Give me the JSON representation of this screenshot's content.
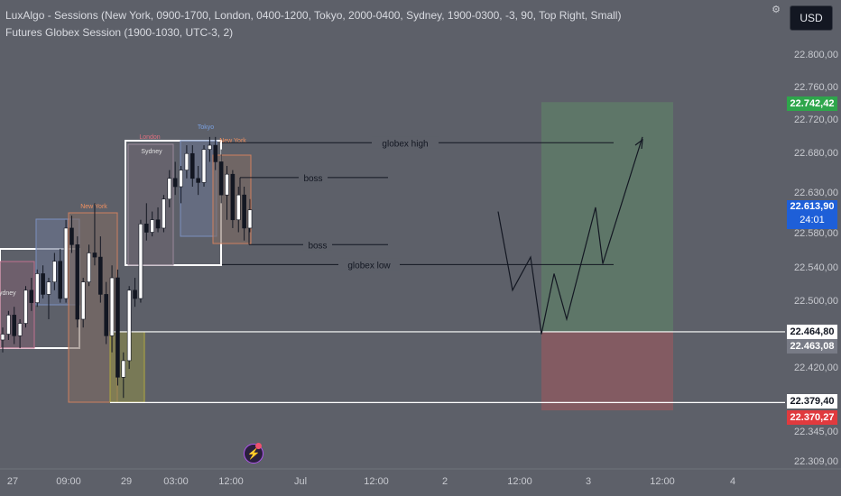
{
  "header": {
    "line1": "LuxAlgo - Sessions (New York, 0900-1700, London, 0400-1200, Tokyo, 2000-0400, Sydney, 1900-0300, -3, 90, Top Right, Small)",
    "line2": "Futures Globex Session (1900-1030, UTC-3, 2)"
  },
  "toolbar": {
    "currency_label": "USD",
    "gear_icon": "gear-icon"
  },
  "price_tags": [
    {
      "value": "22.742,42",
      "color": "#2ea64b"
    },
    {
      "value": "22.613,90",
      "color": "#1e5fd8",
      "sub": "24:01"
    },
    {
      "value": "22.464,80",
      "color": "#ffffff",
      "text_color": "#131722"
    },
    {
      "value": "22.463,08",
      "color": "#787b86"
    },
    {
      "value": "22.379,40",
      "color": "#ffffff",
      "text_color": "#131722"
    },
    {
      "value": "22.370,27",
      "color": "#e03a3e"
    }
  ],
  "bolt_icon": "lightning-icon",
  "chart_data": {
    "type": "candlestick",
    "y_ticks": [
      "22.800,00",
      "22.760,00",
      "22.720,00",
      "22.680,00",
      "22.630,00",
      "22.580,00",
      "22.540,00",
      "22.500,00",
      "22.420,00",
      "22.345,00",
      "22.309,00"
    ],
    "x_ticks": [
      "27",
      "09:00",
      "29",
      "03:00",
      "12:00",
      "Jul",
      "12:00",
      "2",
      "12:00",
      "3",
      "12:00",
      "4"
    ],
    "ylim": [
      22300,
      22830
    ],
    "annotations": [
      {
        "label": "globex high",
        "price": 22693
      },
      {
        "label": "boss",
        "price": 22651
      },
      {
        "label": "boss",
        "price": 22570
      },
      {
        "label": "globex low",
        "price": 22546
      }
    ],
    "session_labels": [
      "Sydney",
      "New York",
      "Sydney",
      "London",
      "Tokyo",
      "New York"
    ],
    "horizontal_levels": [
      22464.8,
      22379.4
    ],
    "candles": [
      [
        22455,
        22470,
        22440,
        22462
      ],
      [
        22462,
        22490,
        22455,
        22485
      ],
      [
        22485,
        22495,
        22450,
        22460
      ],
      [
        22460,
        22480,
        22445,
        22475
      ],
      [
        22475,
        22520,
        22470,
        22515
      ],
      [
        22515,
        22530,
        22490,
        22500
      ],
      [
        22500,
        22540,
        22495,
        22535
      ],
      [
        22535,
        22545,
        22505,
        22510
      ],
      [
        22510,
        22530,
        22480,
        22525
      ],
      [
        22525,
        22560,
        22515,
        22550
      ],
      [
        22550,
        22565,
        22500,
        22505
      ],
      [
        22505,
        22600,
        22500,
        22590
      ],
      [
        22590,
        22605,
        22560,
        22570
      ],
      [
        22570,
        22580,
        22470,
        22480
      ],
      [
        22480,
        22530,
        22470,
        22525
      ],
      [
        22525,
        22570,
        22520,
        22560
      ],
      [
        22560,
        22620,
        22545,
        22555
      ],
      [
        22555,
        22580,
        22500,
        22510
      ],
      [
        22510,
        22525,
        22450,
        22460
      ],
      [
        22460,
        22545,
        22440,
        22530
      ],
      [
        22530,
        22540,
        22400,
        22410
      ],
      [
        22410,
        22440,
        22385,
        22430
      ],
      [
        22430,
        22520,
        22420,
        22515
      ],
      [
        22515,
        22530,
        22495,
        22505
      ],
      [
        22505,
        22600,
        22500,
        22595
      ],
      [
        22595,
        22620,
        22575,
        22585
      ],
      [
        22585,
        22610,
        22580,
        22600
      ],
      [
        22600,
        22615,
        22585,
        22590
      ],
      [
        22590,
        22630,
        22585,
        22625
      ],
      [
        22625,
        22660,
        22615,
        22650
      ],
      [
        22650,
        22670,
        22630,
        22640
      ],
      [
        22640,
        22665,
        22620,
        22660
      ],
      [
        22660,
        22690,
        22650,
        22680
      ],
      [
        22680,
        22690,
        22640,
        22650
      ],
      [
        22650,
        22665,
        22630,
        22645
      ],
      [
        22645,
        22690,
        22640,
        22685
      ],
      [
        22685,
        22700,
        22670,
        22690
      ],
      [
        22690,
        22700,
        22660,
        22670
      ],
      [
        22670,
        22685,
        22620,
        22630
      ],
      [
        22630,
        22665,
        22600,
        22655
      ],
      [
        22655,
        22660,
        22590,
        22600
      ],
      [
        22600,
        22640,
        22585,
        22630
      ],
      [
        22630,
        22640,
        22575,
        22590
      ],
      [
        22590,
        22625,
        22585,
        22612
      ]
    ],
    "projection": [
      [
        22610,
        0
      ],
      [
        22515,
        0
      ],
      [
        22555,
        0
      ],
      [
        22462,
        0
      ],
      [
        22535,
        0
      ],
      [
        22480,
        0
      ],
      [
        22615,
        0
      ],
      [
        22547,
        0
      ],
      [
        22700,
        0
      ]
    ],
    "zones": {
      "green": [
        22742,
        22464.8
      ],
      "red": [
        22464.8,
        22370
      ]
    }
  }
}
